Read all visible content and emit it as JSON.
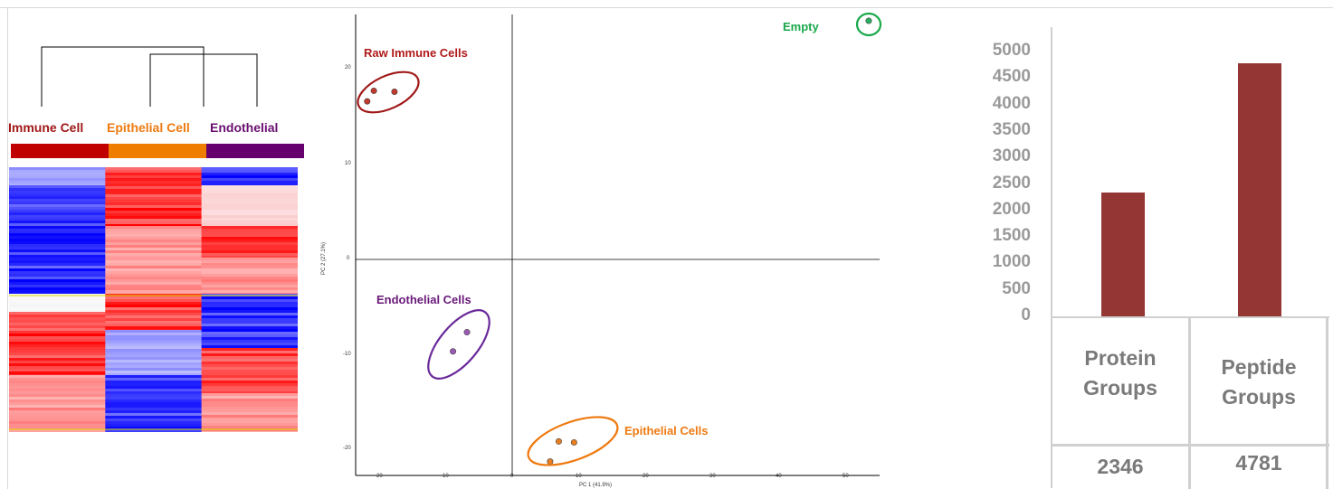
{
  "heatmap": {
    "groups": [
      {
        "label": "Immune Cell",
        "color": "#a01818",
        "bar_color": "#c00000"
      },
      {
        "label": "Epithelial Cell",
        "color": "#ee7a10",
        "bar_color": "#ee7d00"
      },
      {
        "label": "Endothelial",
        "color": "#6a1070",
        "bar_color": "#66006e"
      }
    ]
  },
  "pca": {
    "xlabel": "PC 1 (41.9%)",
    "ylabel": "PC 2 (27.1%)",
    "xticks": [
      "20",
      "10",
      "0",
      "10",
      "20",
      "30",
      "40",
      "50"
    ],
    "yticks": [
      "20",
      "10",
      "0",
      "-10",
      "-20"
    ],
    "annotations": [
      {
        "label": "Raw Immune Cells",
        "color": "#b01a1a"
      },
      {
        "label": "Endothelial Cells",
        "color": "#6a1a7a"
      },
      {
        "label": "Epithelial Cells",
        "color": "#ee7a10"
      },
      {
        "label": "Empty",
        "color": "#1aa84a"
      }
    ]
  },
  "chart_data": [
    {
      "type": "scatter",
      "xlabel": "PC 1 (41.9%)",
      "ylabel": "PC 2 (27.1%)",
      "xlim": [
        -27,
        55
      ],
      "ylim": [
        -22,
        26
      ],
      "series": [
        {
          "name": "Raw Immune Cells",
          "color": "#c0392b",
          "points": [
            [
              -21.8,
              16.5
            ],
            [
              -20.8,
              17.6
            ],
            [
              -17.7,
              17.5
            ]
          ]
        },
        {
          "name": "Endothelial Cells",
          "color": "#9b59b6",
          "points": [
            [
              -6.8,
              -7.6
            ],
            [
              -8.9,
              -9.6
            ]
          ]
        },
        {
          "name": "Epithelial Cells",
          "color": "#e67e22",
          "points": [
            [
              7,
              -19
            ],
            [
              9.3,
              -19.1
            ],
            [
              5.7,
              -21.1
            ]
          ]
        },
        {
          "name": "Empty",
          "color": "#27ae60",
          "points": [
            [
              53.6,
              24.9
            ]
          ]
        }
      ]
    },
    {
      "type": "bar",
      "categories": [
        "Protein Groups",
        "Peptide Groups"
      ],
      "values": [
        2346,
        4781
      ],
      "ylim": [
        0,
        5000
      ],
      "yticks": [
        0,
        500,
        1000,
        1500,
        2000,
        2500,
        3000,
        3500,
        4000,
        4500,
        5000
      ],
      "bar_color": "#943634"
    }
  ],
  "table": {
    "headers": [
      "Protein Groups",
      "Peptide Groups"
    ],
    "values": [
      "2346",
      "4781"
    ]
  }
}
